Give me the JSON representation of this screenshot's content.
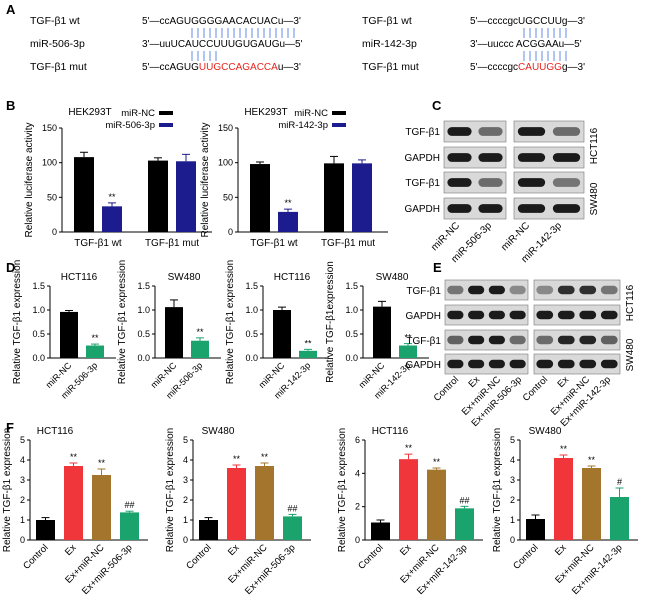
{
  "panels": {
    "A": "A",
    "B": "B",
    "C": "C",
    "D": "D",
    "E": "E",
    "F": "F"
  },
  "panel_a": {
    "left": {
      "labels": [
        "TGF-β1  wt",
        "miR-506-3p",
        "TGF-β1  mut"
      ],
      "seqs": [
        [
          {
            "t": "5'—ccAGUGGGGAACACUACu—3'",
            "c": "#000"
          }
        ],
        [
          {
            "t": "3'—uuUCAUCCUUUGUGAUGu—5'",
            "c": "#000"
          }
        ],
        [
          {
            "t": "5'—ccAGUG",
            "c": "#000"
          },
          {
            "t": "UUGCCAGACCA",
            "c": "#e8231d"
          },
          {
            "t": "u—3'",
            "c": "#000"
          }
        ]
      ]
    },
    "right": {
      "labels": [
        "TGF-β1  wt",
        "miR-142-3p",
        "TGF-β1  mut"
      ],
      "seqs": [
        [
          {
            "t": "5'—ccccgcUGCCUUg—3'",
            "c": "#000"
          }
        ],
        [
          {
            "t": "3'—uuccc ACGGAAu—5'",
            "c": "#000"
          }
        ],
        [
          {
            "t": "5'—ccccgc",
            "c": "#000"
          },
          {
            "t": "CAUUGG",
            "c": "#e8231d"
          },
          {
            "t": "g—3'",
            "c": "#000"
          }
        ]
      ]
    }
  },
  "panel_b": [
    {
      "title": "HEK293T",
      "ylabel": "Relative luciferase activity",
      "ylim": [
        0,
        150
      ],
      "yticks": [
        0,
        50,
        100,
        150
      ],
      "legend": [
        "miR-NC",
        "miR-506-3p"
      ],
      "colors": [
        "#000000",
        "#1c1c8f"
      ],
      "categories": [
        "TGF-β1  wt",
        "TGF-β1  mut"
      ],
      "values": [
        [
          108,
          37
        ],
        [
          103,
          102
        ]
      ],
      "errors": [
        [
          7,
          5
        ],
        [
          4,
          10
        ]
      ],
      "marks": [
        [
          "",
          "**"
        ],
        [
          "",
          ""
        ]
      ]
    },
    {
      "title": "HEK293T",
      "ylabel": "Relative luciferase activity",
      "ylim": [
        0,
        150
      ],
      "yticks": [
        0,
        50,
        100,
        150
      ],
      "legend": [
        "miR-NC",
        "miR-142-3p"
      ],
      "colors": [
        "#000000",
        "#1c1c8f"
      ],
      "categories": [
        "TGF-β1  wt",
        "TGF-β1  mut"
      ],
      "values": [
        [
          98,
          29
        ],
        [
          99,
          99
        ]
      ],
      "errors": [
        [
          3,
          4
        ],
        [
          10,
          5
        ]
      ],
      "marks": [
        [
          "",
          "**"
        ],
        [
          "",
          ""
        ]
      ]
    }
  ],
  "panel_c": {
    "rows": [
      "TGF-β1",
      "GAPDH",
      "TGF-β1",
      "GAPDH"
    ],
    "groups": [
      [
        "miR-NC",
        "miR-506-3p"
      ],
      [
        "miR-NC",
        "miR-142-3p"
      ]
    ],
    "cells": [
      "HCT116",
      "SW480"
    ]
  },
  "panel_d": [
    {
      "title": "HCT116",
      "ylabel": "Relative TGF-β1 expression",
      "ylim": [
        0,
        1.5
      ],
      "yticks": [
        "0.0",
        "0.5",
        "1.0",
        "1.5"
      ],
      "categories": [
        "miR-NC",
        "miR-506-3p"
      ],
      "values": [
        0.96,
        0.26
      ],
      "errors": [
        0.03,
        0.03
      ],
      "colors": [
        "#000000",
        "#1aa36d"
      ],
      "marks": [
        "",
        "**"
      ]
    },
    {
      "title": "SW480",
      "ylabel": "Relative TGF-β1 expression",
      "ylim": [
        0,
        1.5
      ],
      "yticks": [
        "0.0",
        "0.5",
        "1.0",
        "1.5"
      ],
      "categories": [
        "miR-NC",
        "miR-506-3p"
      ],
      "values": [
        1.06,
        0.36
      ],
      "errors": [
        0.15,
        0.06
      ],
      "colors": [
        "#000000",
        "#1aa36d"
      ],
      "marks": [
        "",
        "**"
      ]
    },
    {
      "title": "HCT116",
      "ylabel": "Relative TGF-β1 expression",
      "ylim": [
        0,
        1.5
      ],
      "yticks": [
        "0.0",
        "0.5",
        "1.0",
        "1.5"
      ],
      "categories": [
        "miR-NC",
        "miR-142-3p"
      ],
      "values": [
        1.0,
        0.15
      ],
      "errors": [
        0.06,
        0.03
      ],
      "colors": [
        "#000000",
        "#1aa36d"
      ],
      "marks": [
        "",
        "**"
      ]
    },
    {
      "title": "SW480",
      "ylabel": "Relative TGF-β1expression",
      "ylim": [
        0,
        1.5
      ],
      "yticks": [
        "0.0",
        "0.5",
        "1.0",
        "1.5"
      ],
      "categories": [
        "miR-NC",
        "miR-142-3p"
      ],
      "values": [
        1.07,
        0.26
      ],
      "errors": [
        0.11,
        0.04
      ],
      "colors": [
        "#000000",
        "#1aa36d"
      ],
      "marks": [
        "",
        "**"
      ]
    }
  ],
  "panel_e": {
    "rows": [
      "TGF-β1",
      "GAPDH",
      "TGF-β1",
      "GAPDH"
    ],
    "groups": [
      [
        "Control",
        "Ex",
        "Ex+miR-NC",
        "Ex+miR-506-3p"
      ],
      [
        "Control",
        "Ex",
        "Ex+miR-NC",
        "Ex+miR-142-3p"
      ]
    ],
    "cells": [
      "HCT116",
      "SW480"
    ]
  },
  "panel_f": [
    {
      "title": "HCT116",
      "ylabel": "Relative TGF-β1 expression",
      "ylim": [
        0,
        5
      ],
      "yticks": [
        "0",
        "1",
        "2",
        "3",
        "4",
        "5"
      ],
      "categories": [
        "Control",
        "Ex",
        "Ex+miR-NC",
        "Ex+miR-506-3p"
      ],
      "values": [
        1.0,
        3.7,
        3.25,
        1.38
      ],
      "errors": [
        0.12,
        0.15,
        0.3,
        0.06
      ],
      "colors": [
        "#000000",
        "#f0363b",
        "#a3752d",
        "#1aa36d"
      ],
      "marks": [
        "",
        "**",
        "**",
        "##"
      ]
    },
    {
      "title": "SW480",
      "ylabel": "Relative TGF-β1 expression",
      "ylim": [
        0,
        5
      ],
      "yticks": [
        "0",
        "1",
        "2",
        "3",
        "4",
        "5"
      ],
      "categories": [
        "Control",
        "Ex",
        "Ex+miR-NC",
        "Ex+miR-506-3p"
      ],
      "values": [
        1.0,
        3.6,
        3.7,
        1.18
      ],
      "errors": [
        0.12,
        0.15,
        0.15,
        0.1
      ],
      "colors": [
        "#000000",
        "#f0363b",
        "#a3752d",
        "#1aa36d"
      ],
      "marks": [
        "",
        "**",
        "**",
        "##"
      ]
    },
    {
      "title": "HCT116",
      "ylabel": "Relative TGF-β1 expression",
      "ylim": [
        0,
        6
      ],
      "yticks": [
        "0",
        "2",
        "4",
        "6"
      ],
      "categories": [
        "Control",
        "Ex",
        "Ex+miR-NC",
        "Ex+miR-142-3p"
      ],
      "values": [
        1.05,
        4.85,
        4.22,
        1.9
      ],
      "errors": [
        0.15,
        0.3,
        0.1,
        0.12
      ],
      "colors": [
        "#000000",
        "#f0363b",
        "#a3752d",
        "#1aa36d"
      ],
      "marks": [
        "",
        "**",
        "**",
        "##"
      ]
    },
    {
      "title": "SW480",
      "ylabel": "Relative TGF-β1 expression",
      "ylim": [
        0,
        5
      ],
      "yticks": [
        "0",
        "1",
        "2",
        "3",
        "4",
        "5"
      ],
      "categories": [
        "Control",
        "Ex",
        "Ex+miR-NC",
        "Ex+miR-142-3p"
      ],
      "values": [
        1.05,
        4.1,
        3.6,
        2.15
      ],
      "errors": [
        0.2,
        0.15,
        0.1,
        0.45
      ],
      "colors": [
        "#000000",
        "#f0363b",
        "#a3752d",
        "#1aa36d"
      ],
      "marks": [
        "",
        "**",
        "**",
        "#"
      ]
    }
  ],
  "chart_data": [
    {
      "type": "bar",
      "panel": "B-left",
      "title": "HEK293T",
      "ylabel": "Relative luciferase activity",
      "ylim": [
        0,
        150
      ],
      "categories": [
        "TGF-β1 wt",
        "TGF-β1 mut"
      ],
      "series": [
        {
          "name": "miR-NC",
          "values": [
            108,
            103
          ]
        },
        {
          "name": "miR-506-3p",
          "values": [
            37,
            102
          ]
        }
      ]
    },
    {
      "type": "bar",
      "panel": "B-right",
      "title": "HEK293T",
      "ylabel": "Relative luciferase activity",
      "ylim": [
        0,
        150
      ],
      "categories": [
        "TGF-β1 wt",
        "TGF-β1 mut"
      ],
      "series": [
        {
          "name": "miR-NC",
          "values": [
            98,
            99
          ]
        },
        {
          "name": "miR-142-3p",
          "values": [
            29,
            99
          ]
        }
      ]
    },
    {
      "type": "bar",
      "panel": "D1",
      "title": "HCT116",
      "ylabel": "Relative TGF-β1 expression",
      "ylim": [
        0,
        1.5
      ],
      "categories": [
        "miR-NC",
        "miR-506-3p"
      ],
      "values": [
        0.96,
        0.26
      ]
    },
    {
      "type": "bar",
      "panel": "D2",
      "title": "SW480",
      "ylabel": "Relative TGF-β1 expression",
      "ylim": [
        0,
        1.5
      ],
      "categories": [
        "miR-NC",
        "miR-506-3p"
      ],
      "values": [
        1.06,
        0.36
      ]
    },
    {
      "type": "bar",
      "panel": "D3",
      "title": "HCT116",
      "ylabel": "Relative TGF-β1 expression",
      "ylim": [
        0,
        1.5
      ],
      "categories": [
        "miR-NC",
        "miR-142-3p"
      ],
      "values": [
        1.0,
        0.15
      ]
    },
    {
      "type": "bar",
      "panel": "D4",
      "title": "SW480",
      "ylabel": "Relative TGF-β1expression",
      "ylim": [
        0,
        1.5
      ],
      "categories": [
        "miR-NC",
        "miR-142-3p"
      ],
      "values": [
        1.07,
        0.26
      ]
    },
    {
      "type": "bar",
      "panel": "F1",
      "title": "HCT116",
      "ylabel": "Relative TGF-β1 expression",
      "ylim": [
        0,
        5
      ],
      "categories": [
        "Control",
        "Ex",
        "Ex+miR-NC",
        "Ex+miR-506-3p"
      ],
      "values": [
        1.0,
        3.7,
        3.25,
        1.38
      ]
    },
    {
      "type": "bar",
      "panel": "F2",
      "title": "SW480",
      "ylabel": "Relative TGF-β1 expression",
      "ylim": [
        0,
        5
      ],
      "categories": [
        "Control",
        "Ex",
        "Ex+miR-NC",
        "Ex+miR-506-3p"
      ],
      "values": [
        1.0,
        3.6,
        3.7,
        1.18
      ]
    },
    {
      "type": "bar",
      "panel": "F3",
      "title": "HCT116",
      "ylabel": "Relative TGF-β1 expression",
      "ylim": [
        0,
        6
      ],
      "categories": [
        "Control",
        "Ex",
        "Ex+miR-NC",
        "Ex+miR-142-3p"
      ],
      "values": [
        1.05,
        4.85,
        4.22,
        1.9
      ]
    },
    {
      "type": "bar",
      "panel": "F4",
      "title": "SW480",
      "ylabel": "Relative TGF-β1 expression",
      "ylim": [
        0,
        5
      ],
      "categories": [
        "Control",
        "Ex",
        "Ex+miR-NC",
        "Ex+miR-142-3p"
      ],
      "values": [
        1.05,
        4.1,
        3.6,
        2.15
      ]
    }
  ]
}
